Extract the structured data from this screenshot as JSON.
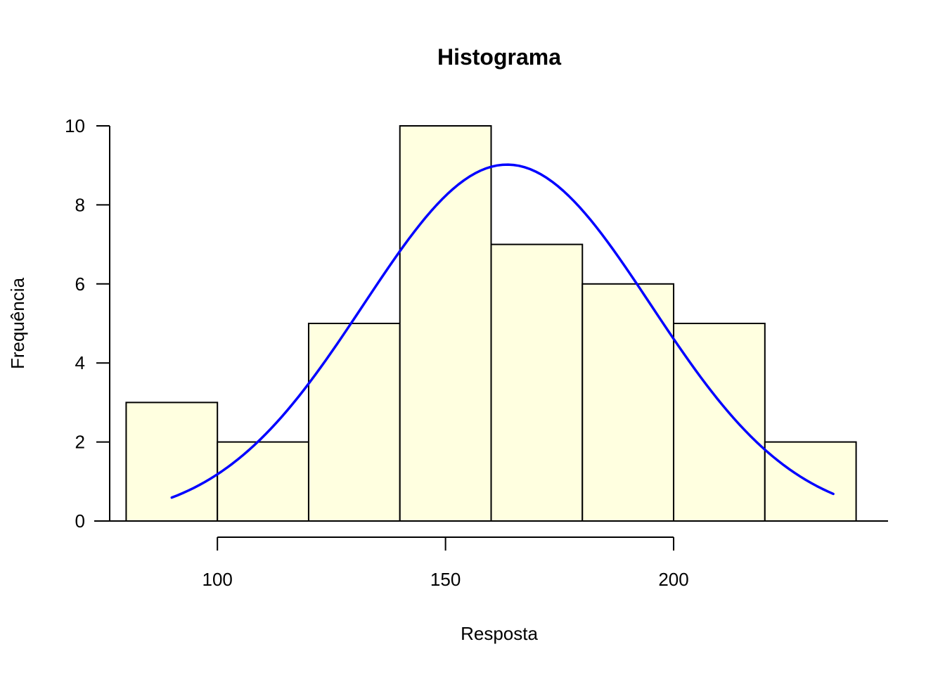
{
  "chart_data": {
    "type": "bar",
    "title": "Histograma",
    "xlabel": "Resposta",
    "ylabel": "Frequência",
    "bins": [
      {
        "from": 80,
        "to": 100,
        "count": 3
      },
      {
        "from": 100,
        "to": 120,
        "count": 2
      },
      {
        "from": 120,
        "to": 140,
        "count": 5
      },
      {
        "from": 140,
        "to": 160,
        "count": 10
      },
      {
        "from": 160,
        "to": 180,
        "count": 7
      },
      {
        "from": 180,
        "to": 200,
        "count": 6
      },
      {
        "from": 200,
        "to": 220,
        "count": 5
      },
      {
        "from": 220,
        "to": 240,
        "count": 2
      }
    ],
    "x_ticks": [
      100,
      150,
      200
    ],
    "y_ticks": [
      0,
      2,
      4,
      6,
      8,
      10
    ],
    "xlim": [
      73,
      247
    ],
    "ylim": [
      0,
      10
    ],
    "density_curve": {
      "type": "normal",
      "mean": 163.5,
      "peak": 9.02,
      "sd": 31.5,
      "x_range": [
        90,
        235
      ]
    },
    "colors": {
      "bar_fill": "#FFFFE0",
      "bar_stroke": "#000000",
      "curve": "#0000FF"
    },
    "grid": false
  }
}
